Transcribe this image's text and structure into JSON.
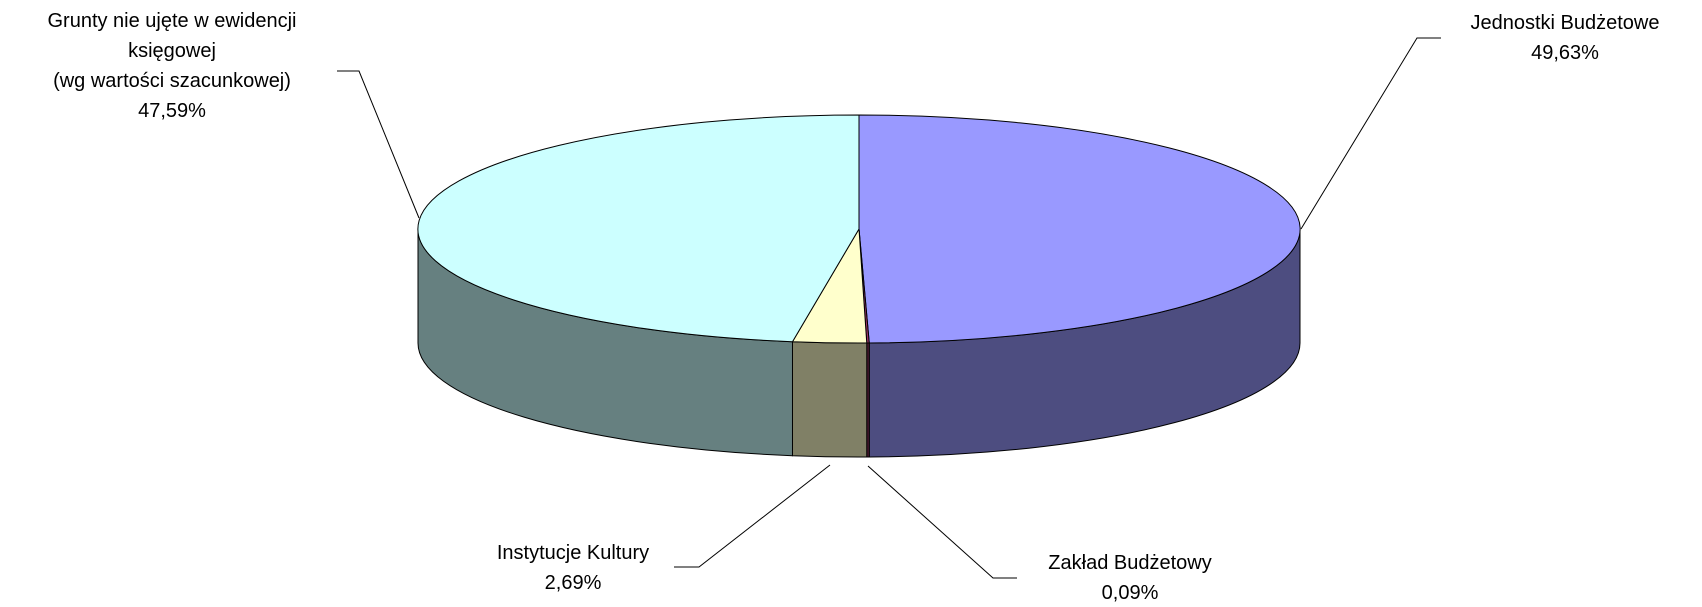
{
  "chart_data": {
    "type": "pie3d",
    "categories": [
      "Jednostki Budżetowe",
      "Zakład Budżetowy",
      "Instytucje Kultury",
      "Grunty nie ujęte w ewidencji\nksięgowej\n(wg wartości szacunkowej)"
    ],
    "values": [
      49.63,
      0.09,
      2.69,
      47.59
    ],
    "value_labels": [
      "49,63%",
      "0,09%",
      "2,69%",
      "47,59%"
    ],
    "colors": [
      "#9999ff",
      "#993366",
      "#ffffcc",
      "#ccffff"
    ]
  }
}
